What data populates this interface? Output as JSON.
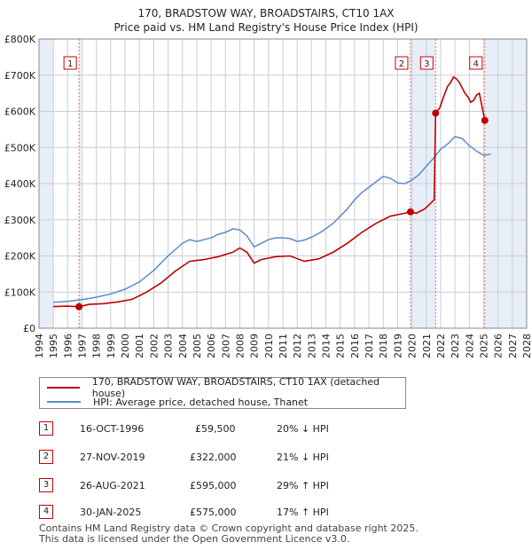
{
  "title_line1": "170, BRADSTOW WAY, BROADSTAIRS, CT10 1AX",
  "title_line2": "Price paid vs. HM Land Registry's House Price Index (HPI)",
  "chart_data": {
    "type": "line",
    "title": "170, BRADSTOW WAY, BROADSTAIRS, CT10 1AX — Price paid vs. HM Land Registry's House Price Index (HPI)",
    "xlabel": "",
    "ylabel": "",
    "xlim": [
      1994,
      2028
    ],
    "ylim": [
      0,
      800000
    ],
    "x_ticks": [
      "1994",
      "1995",
      "1996",
      "1997",
      "1998",
      "1999",
      "2000",
      "2001",
      "2002",
      "2003",
      "2004",
      "2005",
      "2006",
      "2007",
      "2008",
      "2009",
      "2010",
      "2011",
      "2012",
      "2013",
      "2014",
      "2015",
      "2016",
      "2017",
      "2018",
      "2019",
      "2020",
      "2021",
      "2022",
      "2023",
      "2024",
      "2025",
      "2026",
      "2027",
      "2028"
    ],
    "y_ticks": [
      0,
      100000,
      200000,
      300000,
      400000,
      500000,
      600000,
      700000,
      800000
    ],
    "y_tick_labels": [
      "£0",
      "£100K",
      "£200K",
      "£300K",
      "£400K",
      "£500K",
      "£600K",
      "£700K",
      "£800K"
    ],
    "data_range": [
      1995.0,
      2025.5
    ],
    "grid": true,
    "colors": {
      "property": "#c00000",
      "hpi": "#5b8cc8",
      "shade": "#e8eef8",
      "marker_line": "#e07070"
    },
    "series": [
      {
        "name": "170, BRADSTOW WAY, BROADSTAIRS, CT10 1AX (detached house)",
        "x": [
          1995.0,
          1996.0,
          1996.79,
          1997.5,
          1998.5,
          1999.5,
          2000.5,
          2001.5,
          2002.5,
          2003.5,
          2004.5,
          2005.5,
          2006.5,
          2007.5,
          2008.0,
          2008.5,
          2009.0,
          2009.5,
          2010.5,
          2011.5,
          2012.5,
          2013.5,
          2014.5,
          2015.5,
          2016.5,
          2017.5,
          2018.5,
          2019.5,
          2019.9,
          2020.3,
          2020.9,
          2021.55,
          2021.65,
          2021.95,
          2022.2,
          2022.5,
          2022.7,
          2022.9,
          2023.1,
          2023.3,
          2023.5,
          2023.7,
          2023.9,
          2024.1,
          2024.3,
          2024.5,
          2024.7,
          2024.9,
          2025.08
        ],
        "values": [
          60000,
          61000,
          59500,
          66000,
          68000,
          73000,
          80000,
          100000,
          125000,
          158000,
          185000,
          190000,
          198000,
          210000,
          222000,
          210000,
          180000,
          190000,
          198000,
          200000,
          185000,
          192000,
          210000,
          235000,
          265000,
          290000,
          310000,
          318000,
          322000,
          318000,
          330000,
          355000,
          595000,
          610000,
          640000,
          670000,
          680000,
          695000,
          690000,
          680000,
          665000,
          650000,
          640000,
          625000,
          630000,
          645000,
          650000,
          610000,
          575000
        ]
      },
      {
        "name": "HPI: Average price, detached house, Thanet",
        "x": [
          1995.0,
          1996.0,
          1997.0,
          1998.0,
          1999.0,
          2000.0,
          2001.0,
          2002.0,
          2003.0,
          2004.0,
          2004.5,
          2005.0,
          2005.5,
          2006.0,
          2006.5,
          2007.0,
          2007.5,
          2008.0,
          2008.5,
          2009.0,
          2009.5,
          2010.0,
          2010.5,
          2011.0,
          2011.5,
          2012.0,
          2012.5,
          2013.0,
          2013.5,
          2014.0,
          2014.5,
          2015.0,
          2015.5,
          2016.0,
          2016.5,
          2017.0,
          2017.5,
          2018.0,
          2018.5,
          2019.0,
          2019.5,
          2020.0,
          2020.5,
          2021.0,
          2021.5,
          2022.0,
          2022.5,
          2023.0,
          2023.5,
          2024.0,
          2024.5,
          2025.0,
          2025.5
        ],
        "values": [
          72000,
          74000,
          79000,
          86000,
          95000,
          108000,
          128000,
          160000,
          200000,
          235000,
          245000,
          240000,
          245000,
          250000,
          260000,
          265000,
          275000,
          272000,
          255000,
          225000,
          235000,
          245000,
          250000,
          250000,
          248000,
          240000,
          244000,
          252000,
          262000,
          275000,
          290000,
          310000,
          330000,
          355000,
          375000,
          390000,
          405000,
          420000,
          415000,
          402000,
          400000,
          410000,
          425000,
          448000,
          470000,
          495000,
          510000,
          530000,
          525000,
          505000,
          490000,
          478000,
          482000
        ]
      }
    ],
    "sale_markers": [
      {
        "label": "1",
        "x": 1996.79,
        "value": 59500
      },
      {
        "label": "2",
        "x": 2019.9,
        "value": 322000
      },
      {
        "label": "3",
        "x": 2021.65,
        "value": 595000
      },
      {
        "label": "4",
        "x": 2025.08,
        "value": 575000
      }
    ]
  },
  "legend": {
    "property": "170, BRADSTOW WAY, BROADSTAIRS, CT10 1AX (detached house)",
    "hpi": "HPI: Average price, detached house, Thanet"
  },
  "sales": [
    {
      "num": "1",
      "date": "16-OCT-1996",
      "price": "£59,500",
      "hpi": "20% ↓ HPI"
    },
    {
      "num": "2",
      "date": "27-NOV-2019",
      "price": "£322,000",
      "hpi": "21% ↓ HPI"
    },
    {
      "num": "3",
      "date": "26-AUG-2021",
      "price": "£595,000",
      "hpi": "29% ↑ HPI"
    },
    {
      "num": "4",
      "date": "30-JAN-2025",
      "price": "£575,000",
      "hpi": "17% ↑ HPI"
    }
  ],
  "footer_line1": "Contains HM Land Registry data © Crown copyright and database right 2025.",
  "footer_line2": "This data is licensed under the Open Government Licence v3.0."
}
